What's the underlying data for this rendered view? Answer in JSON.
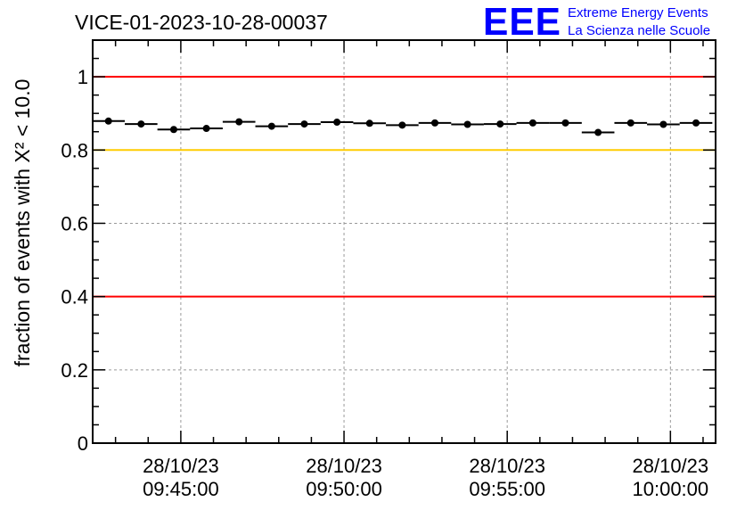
{
  "chart_data": {
    "type": "scatter",
    "title": "VICE-01-2023-10-28-00037",
    "ylabel": "fraction of events with Χ² < 10.0",
    "xlabel": "",
    "ylim": [
      0,
      1.1
    ],
    "xlim": [
      "09:42:18",
      "10:01:23"
    ],
    "date": "28/10/23",
    "x": [
      "09:42:47",
      "09:43:47",
      "09:44:47",
      "09:45:47",
      "09:46:47",
      "09:47:47",
      "09:48:47",
      "09:49:47",
      "09:50:47",
      "09:51:47",
      "09:52:47",
      "09:53:47",
      "09:54:47",
      "09:55:47",
      "09:56:47",
      "09:57:47",
      "09:58:47",
      "09:59:47",
      "10:00:47"
    ],
    "values": [
      0.879,
      0.871,
      0.856,
      0.859,
      0.877,
      0.865,
      0.871,
      0.876,
      0.873,
      0.868,
      0.874,
      0.87,
      0.871,
      0.874,
      0.874,
      0.848,
      0.874,
      0.87,
      0.874
    ],
    "bin_width_seconds": 60,
    "x_ticks": [
      {
        "date": "28/10/23",
        "time": "09:45:00"
      },
      {
        "date": "28/10/23",
        "time": "09:50:00"
      },
      {
        "date": "28/10/23",
        "time": "09:55:00"
      },
      {
        "date": "28/10/23",
        "time": "10:00:00"
      }
    ],
    "y_ticks": [
      "0",
      "0.2",
      "0.4",
      "0.6",
      "0.8",
      "1"
    ],
    "y_tick_values": [
      0,
      0.2,
      0.4,
      0.6,
      0.8,
      1
    ],
    "grid": true,
    "reference_lines": [
      {
        "value": 1.0,
        "color": "#ff0000"
      },
      {
        "value": 0.8,
        "color": "#ffcc00"
      },
      {
        "value": 0.4,
        "color": "#ff0000"
      }
    ]
  },
  "logo": {
    "mark": "EEE",
    "line1": "Extreme Energy Events",
    "line2": "La Scienza nelle Scuole",
    "color": "#0000ff"
  }
}
